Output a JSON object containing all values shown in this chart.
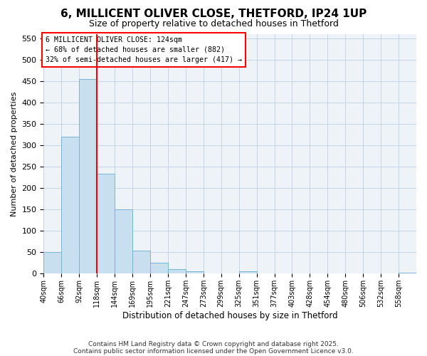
{
  "title": "6, MILLICENT OLIVER CLOSE, THETFORD, IP24 1UP",
  "subtitle": "Size of property relative to detached houses in Thetford",
  "xlabel": "Distribution of detached houses by size in Thetford",
  "ylabel": "Number of detached properties",
  "bar_labels": [
    "40sqm",
    "66sqm",
    "92sqm",
    "118sqm",
    "144sqm",
    "169sqm",
    "195sqm",
    "221sqm",
    "247sqm",
    "273sqm",
    "299sqm",
    "325sqm",
    "351sqm",
    "377sqm",
    "403sqm",
    "428sqm",
    "454sqm",
    "480sqm",
    "506sqm",
    "532sqm",
    "558sqm"
  ],
  "bar_values": [
    50,
    320,
    455,
    233,
    150,
    54,
    25,
    10,
    5,
    0,
    0,
    5,
    0,
    0,
    0,
    0,
    0,
    0,
    0,
    0,
    2
  ],
  "bar_color": "#c8dff0",
  "bar_edgecolor": "#7ab3d3",
  "vline_x_index": 3,
  "vline_color": "red",
  "ylim": [
    0,
    560
  ],
  "yticks": [
    0,
    50,
    100,
    150,
    200,
    250,
    300,
    350,
    400,
    450,
    500,
    550
  ],
  "annotation_lines": [
    "6 MILLICENT OLIVER CLOSE: 124sqm",
    "← 68% of detached houses are smaller (882)",
    "32% of semi-detached houses are larger (417) →"
  ],
  "annotation_box_color": "white",
  "annotation_box_edgecolor": "red",
  "bg_color": "#eef3f8",
  "grid_color": "#c5d5e5",
  "footer_line1": "Contains HM Land Registry data © Crown copyright and database right 2025.",
  "footer_line2": "Contains public sector information licensed under the Open Government Licence v3.0.",
  "bin_width": 26
}
